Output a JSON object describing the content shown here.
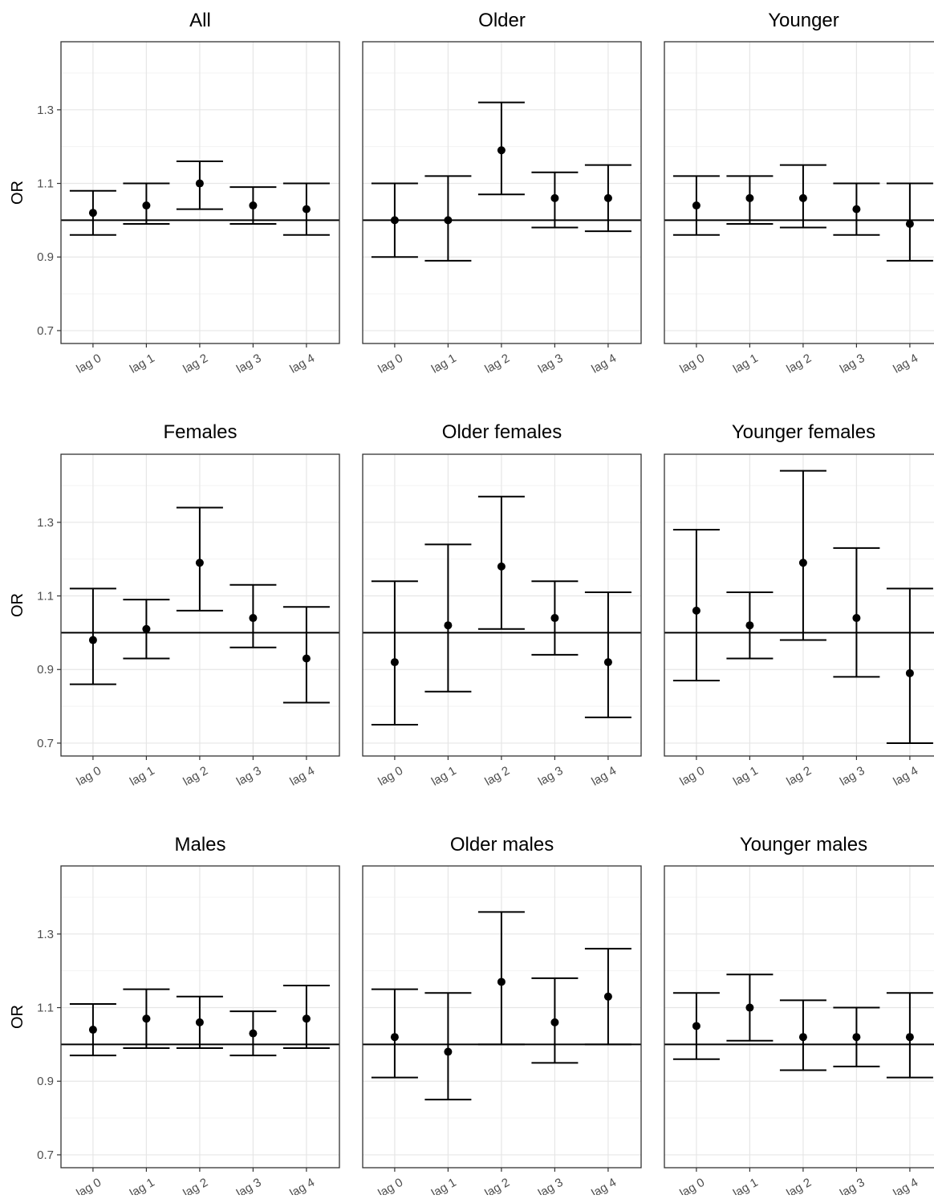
{
  "figure": {
    "y_axis_label": "OR",
    "y_ticks": [
      0.7,
      0.9,
      1.1,
      1.3
    ],
    "reference_line": 1.0,
    "colors": {
      "ink": "#000000",
      "grid_major": "#e6e6e6",
      "grid_minor": "#f3f3f3",
      "panel_border": "#333333"
    }
  },
  "chart_data": [
    {
      "type": "scatter",
      "title": "All",
      "xlabel": "",
      "ylabel": "OR",
      "ylim": [
        0.665,
        1.485
      ],
      "grid": true,
      "categories": [
        "lag 0",
        "lag 1",
        "lag 2",
        "lag 3",
        "lag 4"
      ],
      "estimate": [
        1.02,
        1.04,
        1.1,
        1.04,
        1.03
      ],
      "lower": [
        0.96,
        0.99,
        1.03,
        0.99,
        0.96
      ],
      "upper": [
        1.08,
        1.1,
        1.16,
        1.09,
        1.1
      ]
    },
    {
      "type": "scatter",
      "title": "Older",
      "xlabel": "",
      "ylabel": "",
      "ylim": [
        0.665,
        1.485
      ],
      "grid": true,
      "categories": [
        "lag 0",
        "lag 1",
        "lag 2",
        "lag 3",
        "lag 4"
      ],
      "estimate": [
        1.0,
        1.0,
        1.19,
        1.06,
        1.06
      ],
      "lower": [
        0.9,
        0.89,
        1.07,
        0.98,
        0.97
      ],
      "upper": [
        1.1,
        1.12,
        1.32,
        1.13,
        1.15
      ]
    },
    {
      "type": "scatter",
      "title": "Younger",
      "xlabel": "",
      "ylabel": "",
      "ylim": [
        0.665,
        1.485
      ],
      "grid": true,
      "categories": [
        "lag 0",
        "lag 1",
        "lag 2",
        "lag 3",
        "lag 4"
      ],
      "estimate": [
        1.04,
        1.06,
        1.06,
        1.03,
        0.99
      ],
      "lower": [
        0.96,
        0.99,
        0.98,
        0.96,
        0.89
      ],
      "upper": [
        1.12,
        1.12,
        1.15,
        1.1,
        1.1
      ]
    },
    {
      "type": "scatter",
      "title": "Females",
      "xlabel": "",
      "ylabel": "OR",
      "ylim": [
        0.665,
        1.485
      ],
      "grid": true,
      "categories": [
        "lag 0",
        "lag 1",
        "lag 2",
        "lag 3",
        "lag 4"
      ],
      "estimate": [
        0.98,
        1.01,
        1.19,
        1.04,
        0.93
      ],
      "lower": [
        0.86,
        0.93,
        1.06,
        0.96,
        0.81
      ],
      "upper": [
        1.12,
        1.09,
        1.34,
        1.13,
        1.07
      ]
    },
    {
      "type": "scatter",
      "title": "Older females",
      "xlabel": "",
      "ylabel": "",
      "ylim": [
        0.665,
        1.485
      ],
      "grid": true,
      "categories": [
        "lag 0",
        "lag 1",
        "lag 2",
        "lag 3",
        "lag 4"
      ],
      "estimate": [
        0.92,
        1.02,
        1.18,
        1.04,
        0.92
      ],
      "lower": [
        0.75,
        0.84,
        1.01,
        0.94,
        0.77
      ],
      "upper": [
        1.14,
        1.24,
        1.37,
        1.14,
        1.11
      ]
    },
    {
      "type": "scatter",
      "title": "Younger females",
      "xlabel": "",
      "ylabel": "",
      "ylim": [
        0.665,
        1.485
      ],
      "grid": true,
      "categories": [
        "lag 0",
        "lag 1",
        "lag 2",
        "lag 3",
        "lag 4"
      ],
      "estimate": [
        1.06,
        1.02,
        1.19,
        1.04,
        0.89
      ],
      "lower": [
        0.87,
        0.93,
        0.98,
        0.88,
        0.7
      ],
      "upper": [
        1.28,
        1.11,
        1.44,
        1.23,
        1.12
      ]
    },
    {
      "type": "scatter",
      "title": "Males",
      "xlabel": "",
      "ylabel": "OR",
      "ylim": [
        0.665,
        1.485
      ],
      "grid": true,
      "categories": [
        "lag 0",
        "lag 1",
        "lag 2",
        "lag 3",
        "lag 4"
      ],
      "estimate": [
        1.04,
        1.07,
        1.06,
        1.03,
        1.07
      ],
      "lower": [
        0.97,
        0.99,
        0.99,
        0.97,
        0.99
      ],
      "upper": [
        1.11,
        1.15,
        1.13,
        1.09,
        1.16
      ]
    },
    {
      "type": "scatter",
      "title": "Older males",
      "xlabel": "",
      "ylabel": "",
      "ylim": [
        0.665,
        1.485
      ],
      "grid": true,
      "categories": [
        "lag 0",
        "lag 1",
        "lag 2",
        "lag 3",
        "lag 4"
      ],
      "estimate": [
        1.02,
        0.98,
        1.17,
        1.06,
        1.13
      ],
      "lower": [
        0.91,
        0.85,
        1.0,
        0.95,
        1.0
      ],
      "upper": [
        1.15,
        1.14,
        1.36,
        1.18,
        1.26
      ]
    },
    {
      "type": "scatter",
      "title": "Younger males",
      "xlabel": "",
      "ylabel": "",
      "ylim": [
        0.665,
        1.485
      ],
      "grid": true,
      "categories": [
        "lag 0",
        "lag 1",
        "lag 2",
        "lag 3",
        "lag 4"
      ],
      "estimate": [
        1.05,
        1.1,
        1.02,
        1.02,
        1.02
      ],
      "lower": [
        0.96,
        1.01,
        0.93,
        0.94,
        0.91
      ],
      "upper": [
        1.14,
        1.19,
        1.12,
        1.1,
        1.14
      ]
    }
  ]
}
